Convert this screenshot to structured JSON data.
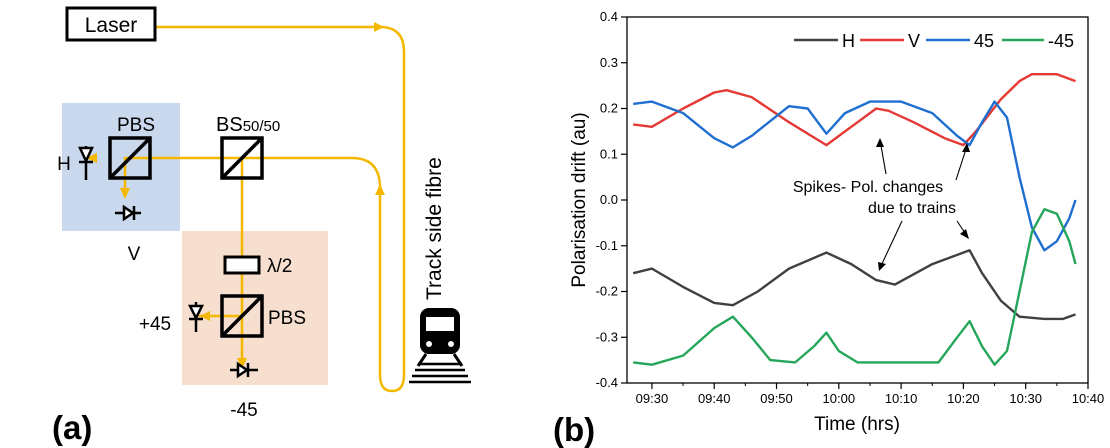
{
  "panel_a": {
    "label": "(a)",
    "laser": "Laser",
    "pbs_top": "PBS",
    "bs": "BS",
    "bs_sub": "50/50",
    "h": "H",
    "v": "V",
    "lambda": "λ/2",
    "pbs_bottom": "PBS",
    "plus45": "+45",
    "minus45": "-45",
    "fibre": "Track side fibre",
    "colors": {
      "beam": "#f5b800",
      "blue_box": "#c9d8ec",
      "orange_box": "#f7dfd0"
    },
    "icons": [
      "photodiode-icon",
      "beam-splitter-icon",
      "waveplate-icon",
      "train-icon"
    ]
  },
  "panel_b": {
    "label": "(b)",
    "annotation_line1": "Spikes- Pol. changes",
    "annotation_line2": "due to trains"
  },
  "chart_data": {
    "type": "line",
    "xlabel": "Time (hrs)",
    "ylabel": "Polarisation drift (au)",
    "ylim": [
      -0.4,
      0.4
    ],
    "yticks": [
      "-0.4",
      "-0.3",
      "-0.2",
      "-0.1",
      "0.0",
      "0.1",
      "0.2",
      "0.3",
      "0.4"
    ],
    "xticks": [
      "09:30",
      "09:40",
      "09:50",
      "10:00",
      "10:10",
      "10:20",
      "10:30",
      "10:40"
    ],
    "xlim": [
      "09:26",
      "10:40"
    ],
    "legend_position": "top-right",
    "series": [
      {
        "name": "H",
        "color": "#404040",
        "points": [
          [
            "09:27",
            -0.16
          ],
          [
            "09:30",
            -0.15
          ],
          [
            "09:35",
            -0.19
          ],
          [
            "09:40",
            -0.225
          ],
          [
            "09:43",
            -0.23
          ],
          [
            "09:47",
            -0.2
          ],
          [
            "09:52",
            -0.15
          ],
          [
            "09:58",
            -0.115
          ],
          [
            "10:02",
            -0.14
          ],
          [
            "10:06",
            -0.175
          ],
          [
            "10:09",
            -0.185
          ],
          [
            "10:15",
            -0.14
          ],
          [
            "10:19",
            -0.12
          ],
          [
            "10:21",
            -0.11
          ],
          [
            "10:23",
            -0.16
          ],
          [
            "10:26",
            -0.22
          ],
          [
            "10:29",
            -0.255
          ],
          [
            "10:33",
            -0.26
          ],
          [
            "10:36",
            -0.26
          ],
          [
            "10:38",
            -0.25
          ]
        ]
      },
      {
        "name": "V",
        "color": "#e53935",
        "points": [
          [
            "09:27",
            0.165
          ],
          [
            "09:30",
            0.16
          ],
          [
            "09:35",
            0.2
          ],
          [
            "09:40",
            0.235
          ],
          [
            "09:42",
            0.24
          ],
          [
            "09:46",
            0.225
          ],
          [
            "09:52",
            0.17
          ],
          [
            "09:58",
            0.12
          ],
          [
            "10:02",
            0.16
          ],
          [
            "10:06",
            0.2
          ],
          [
            "10:08",
            0.195
          ],
          [
            "10:12",
            0.17
          ],
          [
            "10:17",
            0.135
          ],
          [
            "10:20",
            0.12
          ],
          [
            "10:22",
            0.15
          ],
          [
            "10:26",
            0.22
          ],
          [
            "10:29",
            0.26
          ],
          [
            "10:31",
            0.275
          ],
          [
            "10:35",
            0.275
          ],
          [
            "10:38",
            0.26
          ]
        ]
      },
      {
        "name": "45",
        "color": "#1f6fd1",
        "points": [
          [
            "09:27",
            0.21
          ],
          [
            "09:30",
            0.215
          ],
          [
            "09:35",
            0.19
          ],
          [
            "09:40",
            0.135
          ],
          [
            "09:43",
            0.115
          ],
          [
            "09:46",
            0.14
          ],
          [
            "09:52",
            0.205
          ],
          [
            "09:55",
            0.2
          ],
          [
            "09:58",
            0.145
          ],
          [
            "10:01",
            0.19
          ],
          [
            "10:05",
            0.215
          ],
          [
            "10:10",
            0.215
          ],
          [
            "10:15",
            0.19
          ],
          [
            "10:19",
            0.14
          ],
          [
            "10:21",
            0.12
          ],
          [
            "10:23",
            0.17
          ],
          [
            "10:25",
            0.215
          ],
          [
            "10:27",
            0.18
          ],
          [
            "10:29",
            0.05
          ],
          [
            "10:31",
            -0.06
          ],
          [
            "10:33",
            -0.11
          ],
          [
            "10:35",
            -0.09
          ],
          [
            "10:37",
            -0.04
          ],
          [
            "10:38",
            0.0
          ]
        ]
      },
      {
        "name": "-45",
        "color": "#26a65b",
        "points": [
          [
            "09:27",
            -0.355
          ],
          [
            "09:30",
            -0.36
          ],
          [
            "09:35",
            -0.34
          ],
          [
            "09:40",
            -0.28
          ],
          [
            "09:43",
            -0.255
          ],
          [
            "09:46",
            -0.3
          ],
          [
            "09:49",
            -0.35
          ],
          [
            "09:53",
            -0.355
          ],
          [
            "09:56",
            -0.32
          ],
          [
            "09:58",
            -0.29
          ],
          [
            "10:00",
            -0.33
          ],
          [
            "10:03",
            -0.355
          ],
          [
            "10:10",
            -0.355
          ],
          [
            "10:16",
            -0.355
          ],
          [
            "10:19",
            -0.3
          ],
          [
            "10:21",
            -0.265
          ],
          [
            "10:23",
            -0.32
          ],
          [
            "10:25",
            -0.36
          ],
          [
            "10:27",
            -0.33
          ],
          [
            "10:29",
            -0.2
          ],
          [
            "10:31",
            -0.07
          ],
          [
            "10:33",
            -0.02
          ],
          [
            "10:35",
            -0.03
          ],
          [
            "10:37",
            -0.09
          ],
          [
            "10:38",
            -0.14
          ]
        ]
      }
    ]
  }
}
